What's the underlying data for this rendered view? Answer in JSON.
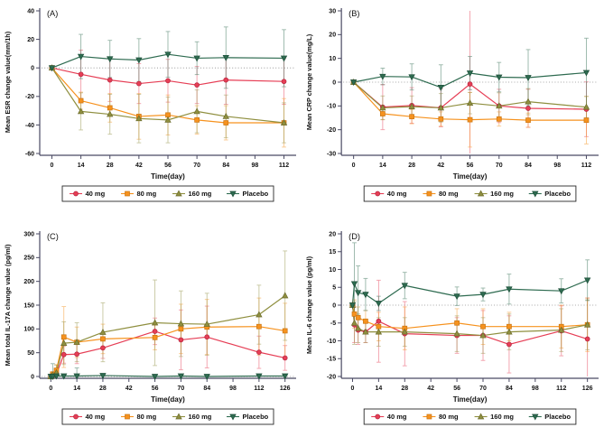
{
  "figure": {
    "background": "#ffffff",
    "panel_letters": [
      "(A)",
      "(B)",
      "(C)",
      "(D)"
    ]
  },
  "legend": {
    "items": [
      {
        "label": "40 mg",
        "marker": "circle",
        "color": "#e63e55",
        "edge": "#b52740"
      },
      {
        "label": "80 mg",
        "marker": "square",
        "color": "#f6921e",
        "edge": "#c97512"
      },
      {
        "label": "160 mg",
        "marker": "triangle-up",
        "color": "#8f8f3f",
        "edge": "#6c6c2c"
      },
      {
        "label": "Placebo",
        "marker": "triangle-down",
        "color": "#2e6b50",
        "edge": "#1d4f39"
      }
    ]
  },
  "chart_data": [
    {
      "panel": "(A)",
      "type": "line",
      "title": "(A)",
      "xlabel": "Time(day)",
      "ylabel": "Mean ESR change value(mm/1h)",
      "ylim": [
        -60,
        40
      ],
      "yticks": [
        -60,
        -40,
        -20,
        0,
        20,
        40
      ],
      "xlim": [
        -5,
        117
      ],
      "xticks": [
        0,
        14,
        28,
        42,
        56,
        70,
        84,
        98,
        112
      ],
      "zero_line": true,
      "grid": false,
      "legend_position": "bottom",
      "x": [
        0,
        14,
        28,
        42,
        56,
        70,
        84,
        112
      ],
      "series": [
        {
          "name": "40 mg",
          "values": [
            0,
            -4.5,
            -8.5,
            -11,
            -9,
            -12,
            -8.5,
            -9.5
          ],
          "err": [
            1.5,
            17,
            15,
            14,
            15,
            13,
            17,
            16
          ]
        },
        {
          "name": "80 mg",
          "values": [
            0,
            -23,
            -28,
            -34,
            -33,
            -36.5,
            -38.5,
            -38.5
          ],
          "err": [
            1.5,
            6,
            10,
            16,
            14,
            10,
            12,
            17
          ]
        },
        {
          "name": "160 mg",
          "values": [
            0,
            -30.5,
            -32.5,
            -35.5,
            -36.5,
            -30.5,
            -34,
            -38.5
          ],
          "err": [
            1.5,
            13,
            14,
            17,
            16,
            15,
            15,
            14
          ]
        },
        {
          "name": "Placebo",
          "values": [
            0,
            8,
            6.3,
            5.5,
            9.5,
            6.8,
            7.2,
            6.8
          ],
          "err": [
            1.5,
            15.5,
            13,
            15,
            16,
            11.5,
            21.5,
            20
          ]
        }
      ]
    },
    {
      "panel": "(B)",
      "type": "line",
      "title": "(B)",
      "xlabel": "Time(day)",
      "ylabel": "Mean CRP change value(mg/L)",
      "ylim": [
        -30,
        30
      ],
      "yticks": [
        -30,
        -20,
        -10,
        0,
        10,
        20,
        30
      ],
      "xlim": [
        -5,
        117
      ],
      "xticks": [
        0,
        14,
        28,
        42,
        56,
        70,
        84,
        98,
        112
      ],
      "zero_line": true,
      "grid": false,
      "legend_position": "bottom",
      "x": [
        0,
        14,
        28,
        42,
        56,
        70,
        84,
        112
      ],
      "series": [
        {
          "name": "40 mg",
          "values": [
            0,
            -10.5,
            -9.8,
            -10.8,
            -0.8,
            -10,
            -11,
            -11.4
          ],
          "err": [
            0.5,
            9.5,
            7.5,
            8,
            31,
            7,
            8,
            11.5
          ]
        },
        {
          "name": "80 mg",
          "values": [
            0,
            -13.3,
            -14.5,
            -15.5,
            -15.8,
            -15.5,
            -16,
            -16
          ],
          "err": [
            0.5,
            2.5,
            3,
            3,
            11.5,
            3,
            3,
            10
          ]
        },
        {
          "name": "160 mg",
          "values": [
            0,
            -10.8,
            -10.3,
            -10.8,
            -8.8,
            -10,
            -8.2,
            -10.5
          ],
          "err": [
            0.5,
            5,
            4.5,
            6,
            4.5,
            5.5,
            5.5,
            4.5
          ]
        },
        {
          "name": "Placebo",
          "values": [
            0,
            2.4,
            2.2,
            -2.2,
            3.8,
            2.1,
            1.9,
            4
          ],
          "err": [
            0.5,
            3.5,
            5.5,
            9.5,
            7,
            6.2,
            11.8,
            14.5
          ]
        }
      ]
    },
    {
      "panel": "(C)",
      "type": "line",
      "title": "(C)",
      "xlabel": "Time(day)",
      "ylabel": "Mean total IL-17A change value (pg/ml)",
      "ylim": [
        0,
        300
      ],
      "yticks": [
        0,
        50,
        100,
        150,
        200,
        250,
        300
      ],
      "xlim": [
        -5,
        131
      ],
      "xticks": [
        0,
        14,
        28,
        42,
        56,
        70,
        84,
        98,
        112,
        126
      ],
      "zero_line": true,
      "grid": false,
      "legend_position": "bottom",
      "x": [
        0,
        1,
        3,
        7,
        14,
        28,
        56,
        70,
        84,
        112,
        126
      ],
      "series": [
        {
          "name": "40 mg",
          "values": [
            0,
            2,
            5,
            46,
            47,
            60,
            95,
            77,
            83,
            51,
            39
          ],
          "err": [
            1,
            3,
            8,
            18,
            20,
            22,
            28,
            63,
            65,
            34,
            26
          ]
        },
        {
          "name": "80 mg",
          "values": [
            0,
            5,
            13,
            83,
            72,
            79,
            82,
            100,
            104,
            105,
            96
          ],
          "err": [
            1,
            5,
            12,
            64,
            32,
            31,
            26,
            52,
            58,
            60,
            58
          ]
        },
        {
          "name": "160 mg",
          "values": [
            0,
            3,
            8,
            70,
            72,
            93,
            113,
            111,
            110,
            130,
            170
          ],
          "err": [
            1,
            4,
            16,
            45,
            41,
            62,
            90,
            69,
            65,
            62,
            94
          ]
        },
        {
          "name": "Placebo",
          "values": [
            0,
            0,
            1,
            1,
            1,
            2,
            0,
            1,
            0,
            1,
            1
          ],
          "err": [
            0.5,
            27,
            3,
            3,
            17,
            3,
            3,
            3,
            3,
            3,
            3
          ]
        }
      ]
    },
    {
      "panel": "(D)",
      "type": "line",
      "title": "(D)",
      "xlabel": "Time(day)",
      "ylabel": "Mean IL-6 change value (pg/ml)",
      "ylim": [
        -20,
        20
      ],
      "yticks": [
        -20,
        -15,
        -10,
        -5,
        0,
        5,
        10,
        15,
        20
      ],
      "xlim": [
        -5,
        131
      ],
      "xticks": [
        0,
        14,
        28,
        42,
        56,
        70,
        84,
        98,
        112,
        126
      ],
      "zero_line": true,
      "grid": false,
      "legend_position": "bottom",
      "x": [
        0,
        1,
        3,
        7,
        14,
        28,
        56,
        70,
        84,
        112,
        126
      ],
      "series": [
        {
          "name": "40 mg",
          "values": [
            0,
            -5.5,
            -7,
            -7.5,
            -4.5,
            -8,
            -8.5,
            -8.5,
            -11,
            -7.2,
            -9.5
          ],
          "err": [
            0.3,
            5,
            4,
            3,
            11.5,
            9,
            5,
            7,
            8,
            7,
            11.5
          ]
        },
        {
          "name": "80 mg",
          "values": [
            0,
            -2.5,
            -3.5,
            -4.5,
            -6,
            -6.5,
            -5,
            -6,
            -6,
            -6,
            -5.5
          ],
          "err": [
            0.3,
            4,
            3,
            3,
            4,
            6,
            4,
            5,
            4,
            6,
            7.5
          ]
        },
        {
          "name": "160 mg",
          "values": [
            0,
            -5,
            -6.5,
            -7.5,
            -7.5,
            -7.5,
            -8,
            -8.5,
            -7.5,
            -7,
            -5.5
          ],
          "err": [
            0.3,
            6,
            4,
            3,
            4,
            4,
            5,
            5,
            5,
            6,
            7
          ]
        },
        {
          "name": "Placebo",
          "values": [
            0,
            6,
            3.5,
            3,
            0.5,
            5.5,
            2.5,
            3,
            4.5,
            4,
            7
          ],
          "err": [
            0.3,
            11.5,
            7.5,
            4.5,
            2,
            3.7,
            2.6,
            1.8,
            4.2,
            3.4,
            5.7
          ]
        }
      ]
    }
  ]
}
